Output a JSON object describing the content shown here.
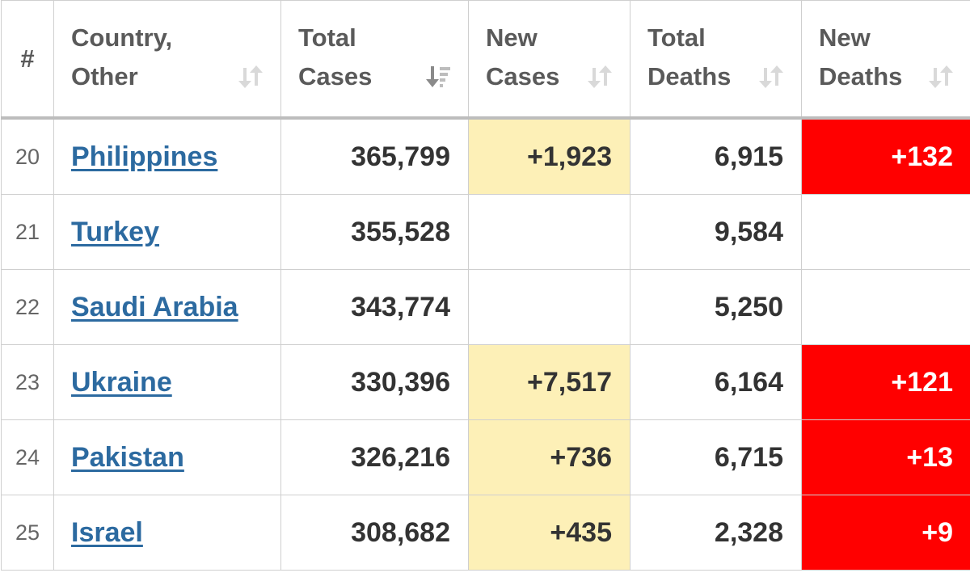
{
  "colors": {
    "new_cases_highlight": "#fdf0b7",
    "new_deaths_highlight": "#ff0000",
    "link": "#2c6aa0",
    "header_text": "#5a5a5a"
  },
  "headers": {
    "rank": "#",
    "country": [
      "Country,",
      "Other"
    ],
    "total_cases": [
      "Total",
      "Cases"
    ],
    "new_cases": [
      "New",
      "Cases"
    ],
    "total_deaths": [
      "Total",
      "Deaths"
    ],
    "new_deaths": [
      "New",
      "Deaths"
    ]
  },
  "icons": {
    "sort_neutral": "sort-arrows-icon",
    "sort_active": "sort-descending-icon"
  },
  "rows": [
    {
      "rank": "20",
      "country": "Philippines",
      "total_cases": "365,799",
      "new_cases": "+1,923",
      "total_deaths": "6,915",
      "new_deaths": "+132"
    },
    {
      "rank": "21",
      "country": "Turkey",
      "total_cases": "355,528",
      "new_cases": "",
      "total_deaths": "9,584",
      "new_deaths": ""
    },
    {
      "rank": "22",
      "country": "Saudi Arabia",
      "total_cases": "343,774",
      "new_cases": "",
      "total_deaths": "5,250",
      "new_deaths": ""
    },
    {
      "rank": "23",
      "country": "Ukraine",
      "total_cases": "330,396",
      "new_cases": "+7,517",
      "total_deaths": "6,164",
      "new_deaths": "+121"
    },
    {
      "rank": "24",
      "country": "Pakistan",
      "total_cases": "326,216",
      "new_cases": "+736",
      "total_deaths": "6,715",
      "new_deaths": "+13"
    },
    {
      "rank": "25",
      "country": "Israel",
      "total_cases": "308,682",
      "new_cases": "+435",
      "total_deaths": "2,328",
      "new_deaths": "+9"
    }
  ]
}
